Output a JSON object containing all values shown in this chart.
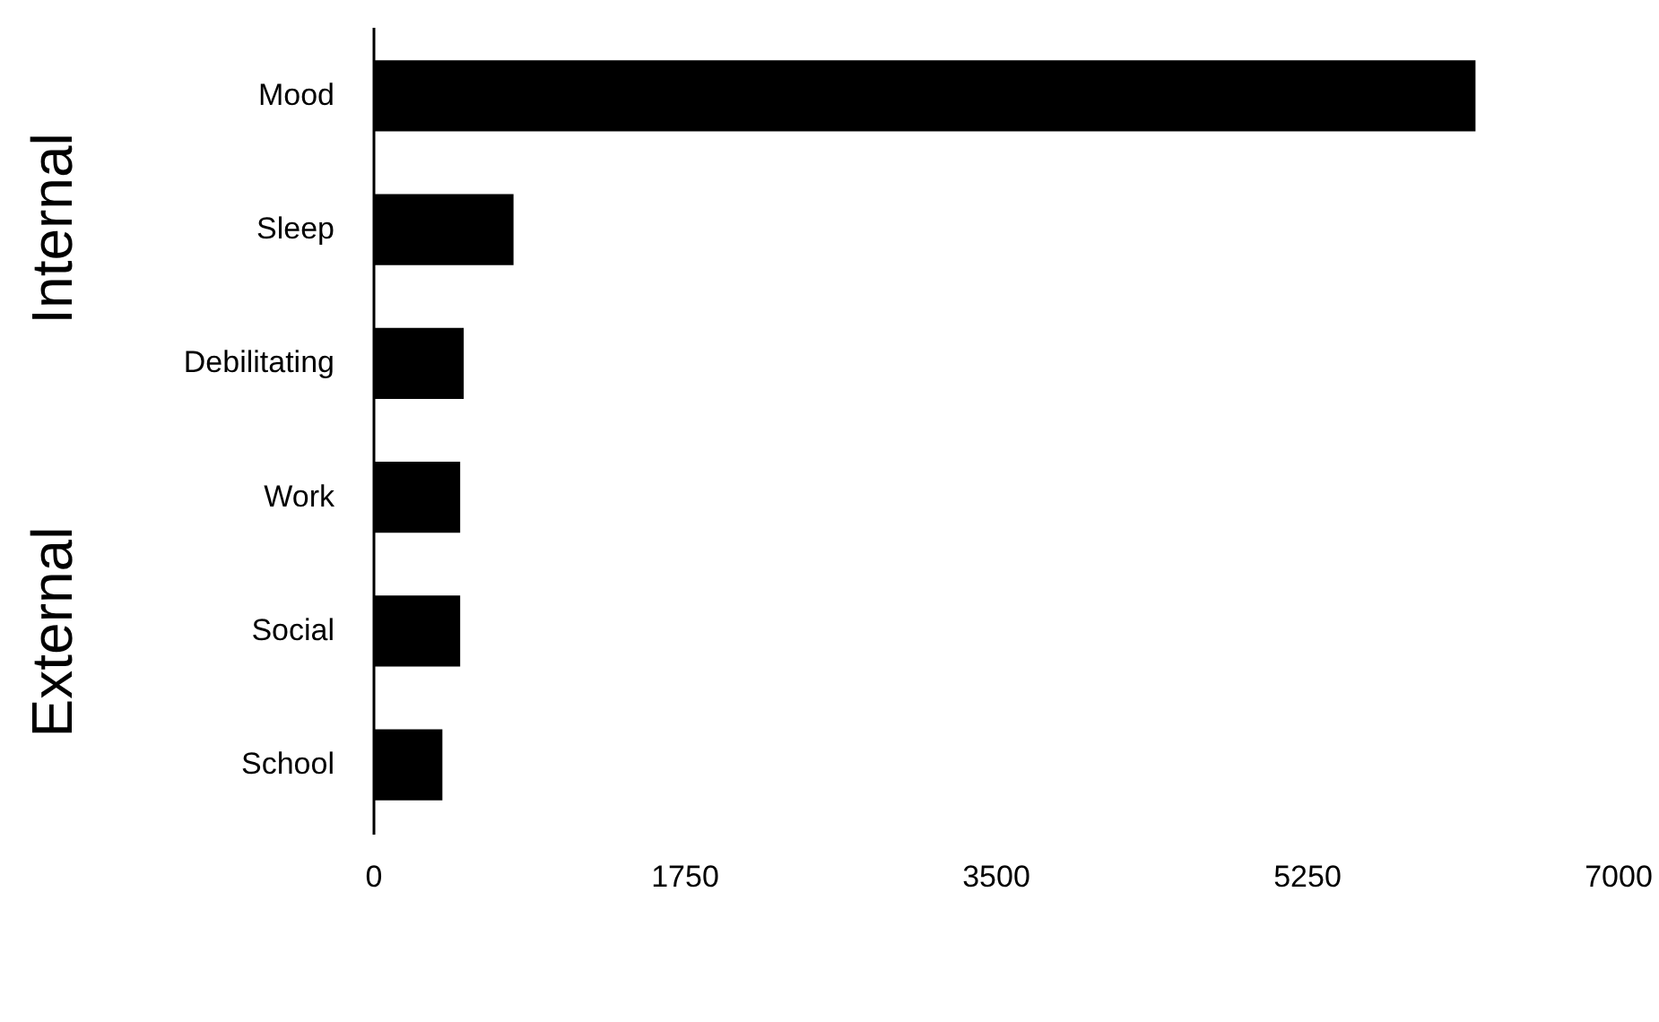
{
  "chart_data": {
    "type": "bar",
    "orientation": "horizontal",
    "categories": [
      "Mood",
      "Sleep",
      "Debilitating",
      "Work",
      "Social",
      "School"
    ],
    "values": [
      6200,
      790,
      510,
      490,
      490,
      390
    ],
    "color": "#000000",
    "xlim": [
      0,
      7000
    ],
    "xticks": [
      0,
      1750,
      3500,
      5250,
      7000
    ],
    "grid": false,
    "annotations": [
      "Internal",
      "External"
    ]
  }
}
